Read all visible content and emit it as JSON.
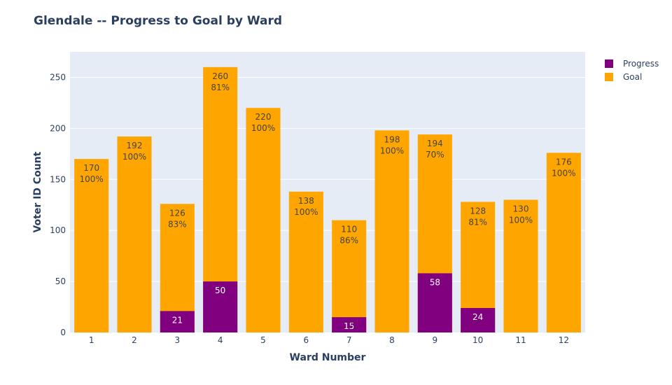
{
  "colors": {
    "progress": "#800080",
    "goal": "#FFA500",
    "plot_bg": "#E5ECF6",
    "text": "#2a3f5f"
  },
  "chart_data": {
    "type": "bar",
    "barmode": "overlay",
    "title": "Glendale -- Progress to Goal by Ward",
    "xlabel": "Ward Number",
    "ylabel": "Voter ID Count",
    "ylim": [
      0,
      275
    ],
    "yticks": [
      0,
      50,
      100,
      150,
      200,
      250
    ],
    "grid": true,
    "legend_position": "top-right",
    "categories": [
      "1",
      "2",
      "3",
      "4",
      "5",
      "6",
      "7",
      "8",
      "9",
      "10",
      "11",
      "12"
    ],
    "series": [
      {
        "name": "Progress",
        "color": "#800080",
        "values": [
          0,
          0,
          21,
          50,
          0,
          0,
          15,
          0,
          58,
          24,
          0,
          0
        ],
        "labels": [
          "",
          "",
          "21",
          "50",
          "",
          "",
          "15",
          "",
          "58",
          "24",
          "",
          ""
        ]
      },
      {
        "name": "Goal",
        "color": "#FFA500",
        "values": [
          170,
          192,
          126,
          260,
          220,
          138,
          110,
          198,
          194,
          128,
          130,
          176
        ],
        "labels": [
          "170\n100%",
          "192\n100%",
          "126\n83%",
          "260\n81%",
          "220\n100%",
          "138\n100%",
          "110\n86%",
          "198\n100%",
          "194\n70%",
          "128\n81%",
          "130\n100%",
          "176\n100%"
        ]
      }
    ]
  }
}
